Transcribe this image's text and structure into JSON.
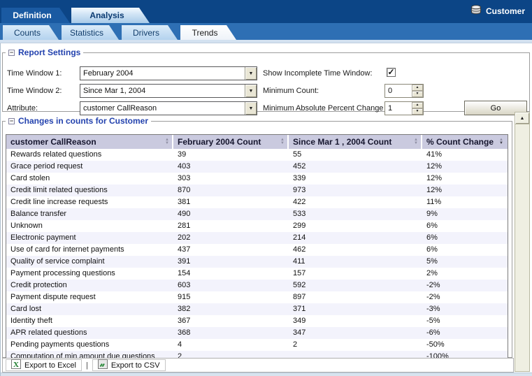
{
  "window": {
    "datasource_label": "Customer"
  },
  "tabs": {
    "primary": [
      {
        "label": "Definition",
        "active": false
      },
      {
        "label": "Analysis",
        "active": true
      }
    ],
    "secondary": [
      {
        "label": "Counts",
        "active": false
      },
      {
        "label": "Statistics",
        "active": false
      },
      {
        "label": "Drivers",
        "active": false
      },
      {
        "label": "Trends",
        "active": true
      }
    ]
  },
  "report_settings": {
    "title": "Report Settings",
    "fields": [
      {
        "label": "Time Window 1:",
        "value": "February 2004"
      },
      {
        "label": "Time Window 2:",
        "value": "Since Mar 1, 2004"
      },
      {
        "label": "Attribute:",
        "value": "customer CallReason"
      }
    ],
    "options": [
      {
        "label": "Show Incomplete Time Window:",
        "type": "checkbox",
        "checked": true
      },
      {
        "label": "Minimum Count:",
        "type": "spinner",
        "value": "0"
      },
      {
        "label": "Minimum Absolute Percent Change",
        "type": "spinner",
        "value": "1"
      }
    ],
    "go_label": "Go"
  },
  "results": {
    "title": "Changes in counts for Customer",
    "columns": [
      "customer CallReason",
      "February 2004 Count",
      "Since Mar 1 , 2004 Count",
      "% Count Change"
    ],
    "sorted_column_index": 3,
    "rows": [
      [
        "Rewards related questions",
        "39",
        "55",
        "41%"
      ],
      [
        "Grace period request",
        "403",
        "452",
        "12%"
      ],
      [
        "Card stolen",
        "303",
        "339",
        "12%"
      ],
      [
        "Credit limit related questions",
        "870",
        "973",
        "12%"
      ],
      [
        "Credit line increase requests",
        "381",
        "422",
        "11%"
      ],
      [
        "Balance transfer",
        "490",
        "533",
        "9%"
      ],
      [
        "Unknown",
        "281",
        "299",
        "6%"
      ],
      [
        "Electronic payment",
        "202",
        "214",
        "6%"
      ],
      [
        "Use of card for internet payments",
        "437",
        "462",
        "6%"
      ],
      [
        "Quality of service complaint",
        "391",
        "411",
        "5%"
      ],
      [
        "Payment processing questions",
        "154",
        "157",
        "2%"
      ],
      [
        "Credit protection",
        "603",
        "592",
        "-2%"
      ],
      [
        "Payment dispute request",
        "915",
        "897",
        "-2%"
      ],
      [
        "Card lost",
        "382",
        "371",
        "-3%"
      ],
      [
        "Identity theft",
        "367",
        "349",
        "-5%"
      ],
      [
        "APR related questions",
        "368",
        "347",
        "-6%"
      ],
      [
        "Pending payments questions",
        "4",
        "2",
        "-50%"
      ],
      [
        "Computation of min amount due questions",
        "2",
        "",
        "-100%"
      ]
    ]
  },
  "export_bar": {
    "excel_label": "Export to Excel",
    "separator": "|",
    "csv_label": "Export to CSV"
  },
  "colors": {
    "navy": "#0C4586",
    "bar2": "#2E6FB4",
    "legend_blue": "#2342AE",
    "table_header_bg": "#CACADF",
    "row_stripe": "#F3F3FC",
    "excel_green": "#1A7A2A"
  }
}
